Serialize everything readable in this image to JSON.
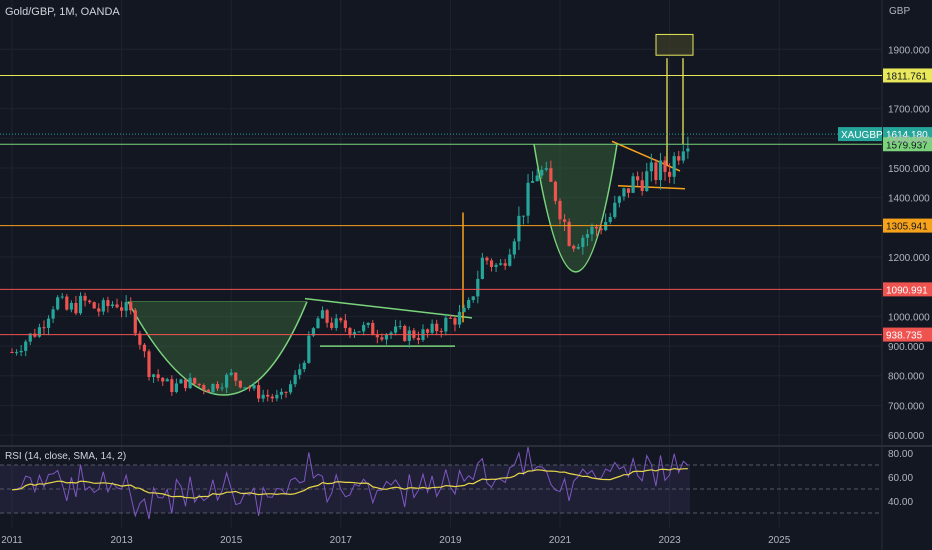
{
  "header": {
    "title": "Gold/GBP, 1M, OANDA"
  },
  "currency_label": "GBP",
  "symbol_badge": "XAUGBP",
  "colors": {
    "background": "#131722",
    "grid": "#1f2330",
    "text": "#b2b5be",
    "up": "#26a69a",
    "down": "#ef5350",
    "yellow": "#e8e85a",
    "green_line": "#7bd47b",
    "orange": "#f7a21b",
    "red_line": "#d94a4a",
    "pink_line": "#c95a72",
    "rsi_line": "#7e57c2",
    "rsi_ma": "#e8d84a"
  },
  "price_axis": {
    "ticks": [
      "1900.000",
      "1700.000",
      "1600.000",
      "1500.000",
      "1400.000",
      "1200.000",
      "1000.000",
      "900.000",
      "800.000",
      "700.000",
      "600.000"
    ]
  },
  "rsi_axis": {
    "ticks": [
      "80.00",
      "60.00",
      "40.00"
    ]
  },
  "time_axis": {
    "ticks": [
      "2011",
      "2013",
      "2015",
      "2017",
      "2019",
      "2021",
      "2023",
      "2025"
    ]
  },
  "rsi_label": "RSI (14, close, SMA, 14, 2)",
  "levels": [
    {
      "value": 1811.761,
      "label": "1811.761",
      "color": "#e8e85a"
    },
    {
      "value": 1614.18,
      "label": "1614.180",
      "color": "#26a69a",
      "style": "dotted"
    },
    {
      "value": 1579.937,
      "label": "1579.937",
      "color": "#7bd47b"
    },
    {
      "value": 1305.941,
      "label": "1305.941",
      "color": "#f7a21b"
    },
    {
      "value": 1090.991,
      "label": "1090.991",
      "color": "#ef5350"
    },
    {
      "value": 938.735,
      "label": "938.735",
      "color": "#ef5350"
    }
  ],
  "chart_data": {
    "type": "candlestick",
    "title": "Gold/GBP, 1M, OANDA",
    "ylabel": "GBP",
    "ylim": [
      560,
      2000
    ],
    "rsi_ylim": [
      20,
      90
    ],
    "xlim": [
      2011.0,
      2026.0
    ],
    "approx_monthly_close": [
      {
        "x": 2011.0,
        "c": 880
      },
      {
        "x": 2011.5,
        "c": 960
      },
      {
        "x": 2011.8,
        "c": 1060
      },
      {
        "x": 2012.0,
        "c": 1020
      },
      {
        "x": 2012.3,
        "c": 1050
      },
      {
        "x": 2012.6,
        "c": 1020
      },
      {
        "x": 2012.9,
        "c": 1050
      },
      {
        "x": 2013.2,
        "c": 1000
      },
      {
        "x": 2013.5,
        "c": 820
      },
      {
        "x": 2013.9,
        "c": 760
      },
      {
        "x": 2014.2,
        "c": 780
      },
      {
        "x": 2014.6,
        "c": 760
      },
      {
        "x": 2015.0,
        "c": 800
      },
      {
        "x": 2015.5,
        "c": 740
      },
      {
        "x": 2015.9,
        "c": 720
      },
      {
        "x": 2016.2,
        "c": 800
      },
      {
        "x": 2016.6,
        "c": 1000
      },
      {
        "x": 2016.9,
        "c": 970
      },
      {
        "x": 2017.3,
        "c": 960
      },
      {
        "x": 2017.7,
        "c": 950
      },
      {
        "x": 2018.2,
        "c": 940
      },
      {
        "x": 2018.6,
        "c": 940
      },
      {
        "x": 2018.9,
        "c": 980
      },
      {
        "x": 2019.3,
        "c": 1010
      },
      {
        "x": 2019.6,
        "c": 1200
      },
      {
        "x": 2019.9,
        "c": 1160
      },
      {
        "x": 2020.2,
        "c": 1300
      },
      {
        "x": 2020.6,
        "c": 1500
      },
      {
        "x": 2020.9,
        "c": 1420
      },
      {
        "x": 2021.2,
        "c": 1250
      },
      {
        "x": 2021.6,
        "c": 1290
      },
      {
        "x": 2021.9,
        "c": 1330
      },
      {
        "x": 2022.3,
        "c": 1450
      },
      {
        "x": 2022.7,
        "c": 1480
      },
      {
        "x": 2023.0,
        "c": 1500
      },
      {
        "x": 2023.3,
        "c": 1614
      }
    ]
  }
}
